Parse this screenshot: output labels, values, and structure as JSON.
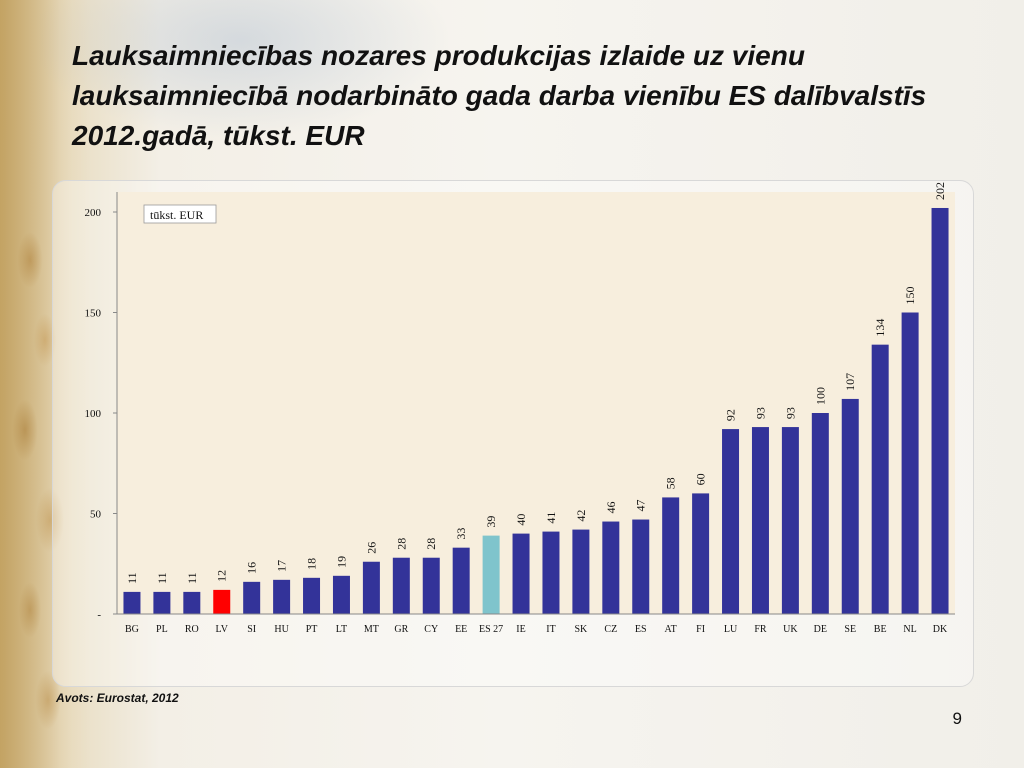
{
  "slide": {
    "title": "Lauksaimniecības nozares produkcijas izlaide uz vienu lauksaimniecībā nodarbināto gada darba vienību ES dalībvalstīs 2012.gadā, tūkst. EUR",
    "source": "Avots: Eurostat, 2012",
    "page_number": "9"
  },
  "chart_data": {
    "type": "bar",
    "title": "Lauksaimniecības nozares produkcijas izlaide uz vienu lauksaimniecībā nodarbināto gada darba vienību ES dalībvalstīs 2012.gadā, tūkst. EUR",
    "unit_label": "tūkst. EUR",
    "categories": [
      "BG",
      "PL",
      "RO",
      "LV",
      "SI",
      "HU",
      "PT",
      "LT",
      "MT",
      "GR",
      "CY",
      "EE",
      "ES 27",
      "IE",
      "IT",
      "SK",
      "CZ",
      "ES",
      "AT",
      "FI",
      "LU",
      "FR",
      "UK",
      "DE",
      "SE",
      "BE",
      "NL",
      "DK"
    ],
    "values": [
      11,
      11,
      11,
      12,
      16,
      17,
      18,
      19,
      26,
      28,
      28,
      33,
      39,
      40,
      41,
      42,
      46,
      47,
      58,
      60,
      92,
      93,
      93,
      100,
      107,
      134,
      150,
      202
    ],
    "y_ticks": [
      {
        "value": 0,
        "label": "-"
      },
      {
        "value": 50,
        "label": "50"
      },
      {
        "value": 100,
        "label": "100"
      },
      {
        "value": 150,
        "label": "150"
      },
      {
        "value": 200,
        "label": "200"
      }
    ],
    "ylim": [
      0,
      200
    ],
    "grid": false,
    "colors": {
      "default": "#333399",
      "highlight_LV": "#ff0000",
      "highlight_ES27": "#7fc4cc",
      "plot_background": "#f7eedd"
    },
    "highlights": {
      "LV": "#ff0000",
      "ES 27": "#7fc4cc"
    }
  }
}
